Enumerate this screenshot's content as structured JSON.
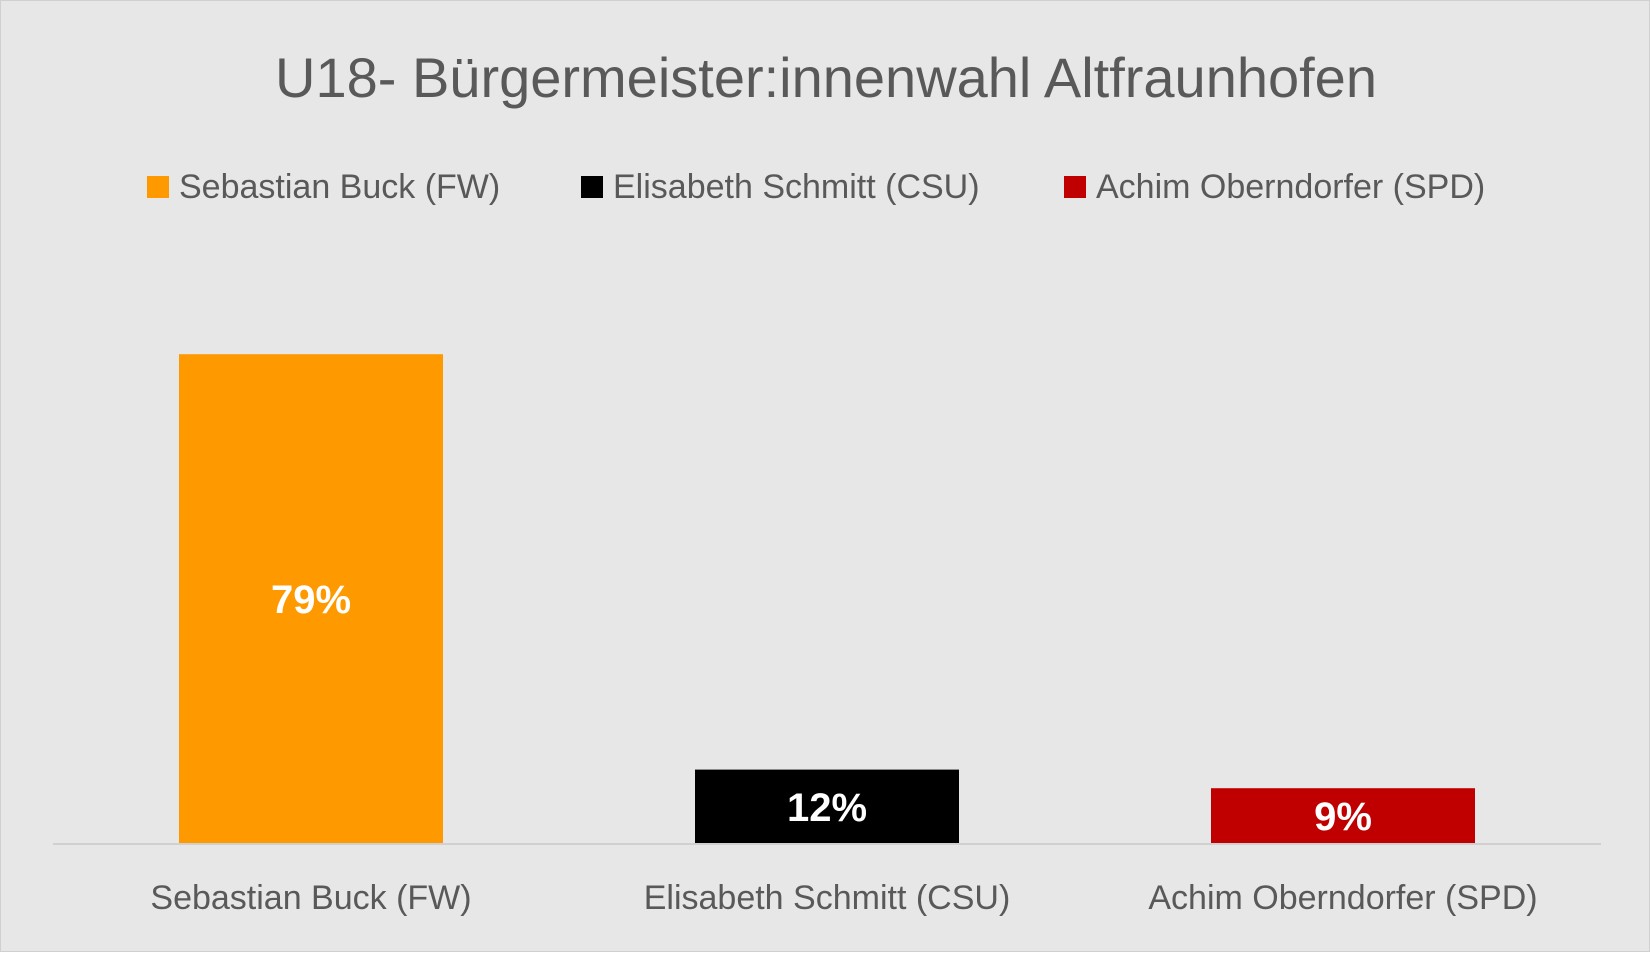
{
  "chart_data": {
    "type": "bar",
    "title": "U18- Bürgermeister:innenwahl Altfraunhofen",
    "xlabel": "",
    "ylabel": "",
    "categories": [
      "Sebastian Buck (FW)",
      "Elisabeth Schmitt (CSU)",
      "Achim Oberndorfer (SPD)"
    ],
    "values": [
      79,
      12,
      9
    ],
    "value_labels": [
      "79%",
      "12%",
      "9%"
    ],
    "colors": [
      "#ff9900",
      "#000000",
      "#c00000"
    ],
    "ylim": [
      0,
      100
    ],
    "grid": false,
    "legend": {
      "position": "top",
      "entries": [
        "Sebastian Buck (FW)",
        "Elisabeth Schmitt (CSU)",
        "Achim Oberndorfer (SPD)"
      ]
    }
  }
}
